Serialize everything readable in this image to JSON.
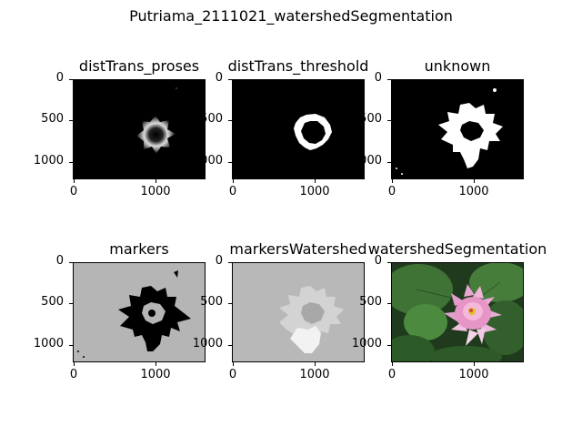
{
  "figure": {
    "suptitle": "Putriama_2111021_watershedSegmentation",
    "panels": [
      {
        "title": "distTrans_proses",
        "yticks": [
          "0",
          "500",
          "1000"
        ],
        "xticks": [
          "0",
          "1000"
        ]
      },
      {
        "title": "distTrans_threshold",
        "yticks": [
          "0",
          "500",
          "1000"
        ],
        "xticks": [
          "0",
          "1000"
        ]
      },
      {
        "title": "unknown",
        "yticks": [
          "0",
          "500",
          "1000"
        ],
        "xticks": [
          "0",
          "1000"
        ]
      },
      {
        "title": "markers",
        "yticks": [
          "0",
          "500",
          "1000"
        ],
        "xticks": [
          "0",
          "1000"
        ]
      },
      {
        "title": "markersWatershed",
        "yticks": [
          "0",
          "500",
          "1000"
        ],
        "xticks": [
          "0",
          "1000"
        ]
      },
      {
        "title": "watershedSegmentation",
        "yticks": [
          "0",
          "500",
          "1000"
        ],
        "xticks": [
          "0",
          "1000"
        ]
      }
    ]
  },
  "colors": {
    "marker_bg": "#b5b5b5",
    "watershed_bg": "#b8b8b8",
    "lily_pink": "#e8a6cf",
    "lily_center": "#e0c030",
    "pad_green": "#2d5a28"
  }
}
